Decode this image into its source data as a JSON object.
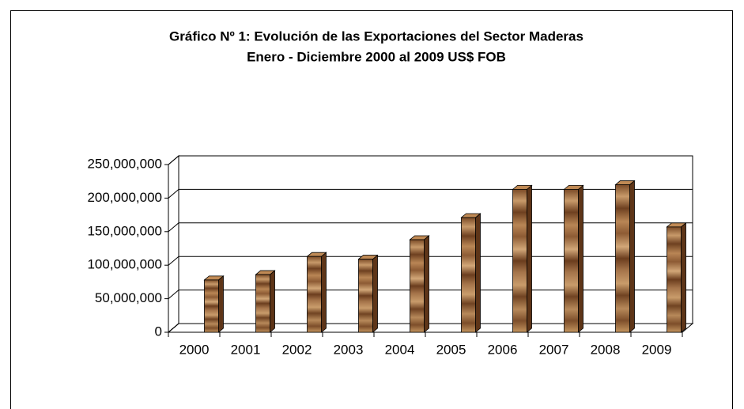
{
  "chart_data": {
    "type": "bar3d",
    "title": "Gráfico Nº 1: Evolución de las Exportaciones del Sector Maderas",
    "subtitle": "Enero - Diciembre 2000 al 2009 US$ FOB",
    "categories": [
      "2000",
      "2001",
      "2002",
      "2003",
      "2004",
      "2005",
      "2006",
      "2007",
      "2008",
      "2009"
    ],
    "values": [
      78000000,
      86000000,
      113000000,
      109000000,
      138000000,
      171000000,
      213000000,
      213000000,
      220000000,
      157000000
    ],
    "color": "#8b5a2b",
    "ylim": [
      0,
      250000000
    ],
    "yticks": [
      {
        "value": 0,
        "label": "0"
      },
      {
        "value": 50000000,
        "label": "50,000,000"
      },
      {
        "value": 100000000,
        "label": "100,000,000"
      },
      {
        "value": 150000000,
        "label": "150,000,000"
      },
      {
        "value": 200000000,
        "label": "200,000,000"
      },
      {
        "value": 250000000,
        "label": "250,000,000"
      }
    ],
    "grid": true
  }
}
